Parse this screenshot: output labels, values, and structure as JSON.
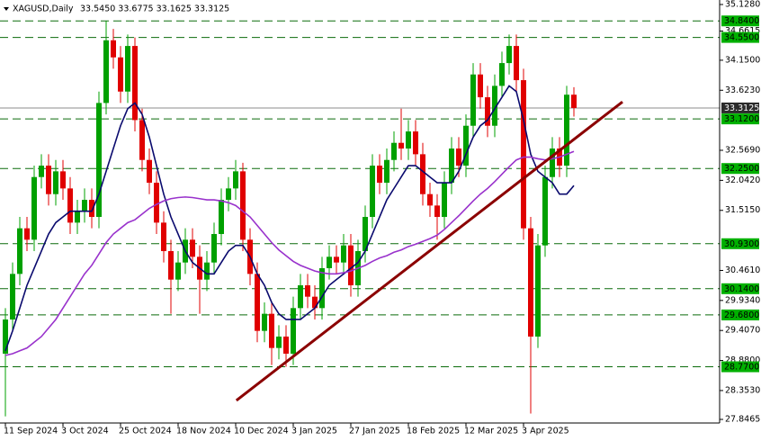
{
  "chart_data": {
    "type": "candlestick",
    "title": "XAGUSD,Daily",
    "ohlc_text": "33.5450 33.6775 33.1625 33.3125",
    "bull_color": "#00a000",
    "bear_color": "#e00000",
    "categories": [
      "11 Sep 2024",
      null,
      null,
      null,
      null,
      null,
      null,
      null,
      "3 Oct 2024",
      null,
      null,
      null,
      null,
      null,
      null,
      null,
      "25 Oct 2024",
      null,
      null,
      null,
      null,
      null,
      null,
      null,
      "18 Nov 2024",
      null,
      null,
      null,
      null,
      null,
      null,
      null,
      "10 Dec 2024",
      null,
      null,
      null,
      null,
      null,
      null,
      null,
      "3 Jan 2025",
      null,
      null,
      null,
      null,
      null,
      null,
      null,
      "27 Jan 2025",
      null,
      null,
      null,
      null,
      null,
      null,
      null,
      "18 Feb 2025",
      null,
      null,
      null,
      null,
      null,
      null,
      null,
      "12 Mar 2025",
      null,
      null,
      null,
      null,
      null,
      null,
      null,
      "3 Apr 2025",
      null,
      null,
      null,
      null,
      null,
      null,
      null
    ],
    "open": [
      29.0,
      29.6,
      30.4,
      31.2,
      31.0,
      32.1,
      32.3,
      31.8,
      32.2,
      31.9,
      31.3,
      31.5,
      31.7,
      31.4,
      33.4,
      34.5,
      34.2,
      33.6,
      34.4,
      33.1,
      32.4,
      32.0,
      31.3,
      30.8,
      30.3,
      30.6,
      31.0,
      30.7,
      30.3,
      30.6,
      31.1,
      31.7,
      31.9,
      32.2,
      31.0,
      30.4,
      29.4,
      29.7,
      29.1,
      29.3,
      29.0,
      29.8,
      30.2,
      30.0,
      29.8,
      30.5,
      30.7,
      30.6,
      30.9,
      30.2,
      30.8,
      31.4,
      32.3,
      32.0,
      32.4,
      32.7,
      32.6,
      32.9,
      32.5,
      31.8,
      31.6,
      31.4,
      32.0,
      32.6,
      32.3,
      33.0,
      33.9,
      33.5,
      33.0,
      33.7,
      34.1,
      34.4,
      33.8,
      31.2,
      29.3,
      30.9,
      32.1,
      32.6,
      32.3,
      33.545
    ],
    "high": [
      29.8,
      30.6,
      31.4,
      31.4,
      32.3,
      32.5,
      32.5,
      32.4,
      32.4,
      32.1,
      31.7,
      31.9,
      31.9,
      33.6,
      34.84,
      34.7,
      34.4,
      34.6,
      34.55,
      33.3,
      32.6,
      32.2,
      31.5,
      31.0,
      30.8,
      31.2,
      31.2,
      30.9,
      30.8,
      31.3,
      31.9,
      32.1,
      32.4,
      32.35,
      31.2,
      30.6,
      29.9,
      29.9,
      29.5,
      29.5,
      30.0,
      30.4,
      30.4,
      30.2,
      30.7,
      30.9,
      30.9,
      31.1,
      31.1,
      31.0,
      31.6,
      32.5,
      32.5,
      32.6,
      32.9,
      33.3,
      33.1,
      33.1,
      32.7,
      32.0,
      31.8,
      32.2,
      32.8,
      32.8,
      33.2,
      34.1,
      34.1,
      33.7,
      33.9,
      34.3,
      34.6,
      34.6,
      34.0,
      31.4,
      31.1,
      32.3,
      32.8,
      32.8,
      33.7,
      33.6775
    ],
    "low": [
      27.9,
      29.4,
      30.2,
      30.8,
      30.8,
      31.9,
      31.6,
      31.6,
      31.7,
      31.1,
      31.1,
      31.3,
      31.2,
      31.2,
      33.2,
      34.0,
      33.4,
      33.4,
      32.9,
      32.2,
      31.8,
      31.1,
      30.6,
      29.7,
      30.1,
      30.4,
      30.5,
      29.7,
      30.1,
      30.4,
      30.9,
      31.5,
      31.7,
      30.8,
      30.2,
      29.2,
      29.2,
      28.8,
      28.9,
      28.77,
      28.8,
      29.6,
      29.8,
      29.6,
      29.6,
      30.3,
      30.4,
      30.4,
      30.0,
      30.0,
      30.6,
      31.2,
      31.8,
      31.8,
      32.2,
      32.4,
      32.4,
      32.3,
      31.6,
      31.4,
      31.0,
      31.2,
      31.8,
      32.1,
      32.1,
      32.8,
      33.3,
      32.8,
      32.8,
      33.5,
      33.9,
      33.6,
      31.0,
      27.95,
      29.1,
      30.7,
      31.9,
      32.1,
      32.1,
      33.1625
    ],
    "close": [
      29.6,
      30.4,
      31.2,
      31.0,
      32.1,
      32.3,
      31.8,
      32.2,
      31.9,
      31.3,
      31.5,
      31.7,
      31.4,
      33.4,
      34.5,
      34.2,
      33.6,
      34.4,
      33.1,
      32.4,
      32.0,
      31.3,
      30.8,
      30.3,
      30.6,
      31.0,
      30.7,
      30.3,
      30.6,
      31.1,
      31.7,
      31.9,
      32.2,
      31.0,
      30.4,
      29.4,
      29.7,
      29.1,
      29.3,
      29.0,
      29.8,
      30.2,
      30.0,
      29.8,
      30.5,
      30.7,
      30.6,
      30.9,
      30.2,
      30.8,
      31.4,
      32.3,
      32.0,
      32.4,
      32.7,
      32.6,
      32.9,
      32.5,
      31.8,
      31.6,
      31.4,
      32.0,
      32.6,
      32.3,
      33.0,
      33.9,
      33.5,
      33.0,
      33.7,
      34.1,
      34.4,
      33.8,
      31.2,
      29.3,
      30.9,
      32.1,
      32.6,
      32.3,
      33.545,
      33.3125
    ],
    "series": [
      {
        "color": "#0a0a6e",
        "values": [
          29.05,
          29.4,
          29.8,
          30.2,
          30.5,
          30.8,
          31.1,
          31.3,
          31.4,
          31.5,
          31.5,
          31.5,
          31.5,
          31.8,
          32.2,
          32.6,
          33.0,
          33.3,
          33.4,
          33.2,
          32.8,
          32.3,
          31.8,
          31.4,
          31.1,
          30.8,
          30.6,
          30.5,
          30.4,
          30.4,
          30.6,
          30.8,
          30.9,
          30.9,
          30.7,
          30.4,
          30.2,
          29.9,
          29.7,
          29.6,
          29.6,
          29.6,
          29.7,
          29.8,
          30.0,
          30.2,
          30.3,
          30.4,
          30.5,
          30.6,
          30.8,
          31.1,
          31.4,
          31.7,
          31.9,
          32.1,
          32.3,
          32.3,
          32.2,
          32.1,
          32.0,
          32.0,
          32.0,
          32.2,
          32.5,
          32.8,
          33.0,
          33.1,
          33.3,
          33.5,
          33.7,
          33.6,
          33.1,
          32.5,
          32.2,
          32.1,
          32.0,
          31.8,
          31.8,
          31.95
        ]
      },
      {
        "color": "#9932cc",
        "values": [
          28.97,
          29.0,
          29.05,
          29.1,
          29.2,
          29.3,
          29.45,
          29.6,
          29.8,
          30.0,
          30.2,
          30.4,
          30.55,
          30.75,
          30.95,
          31.1,
          31.2,
          31.3,
          31.35,
          31.45,
          31.55,
          31.62,
          31.68,
          31.72,
          31.74,
          31.75,
          31.74,
          31.72,
          31.7,
          31.7,
          31.68,
          31.65,
          31.6,
          31.5,
          31.4,
          31.25,
          31.1,
          30.95,
          30.82,
          30.72,
          30.62,
          30.55,
          30.5,
          30.45,
          30.42,
          30.4,
          30.4,
          30.42,
          30.45,
          30.5,
          30.55,
          30.62,
          30.68,
          30.72,
          30.78,
          30.82,
          30.88,
          30.92,
          30.97,
          31.02,
          31.08,
          31.18,
          31.3,
          31.42,
          31.55,
          31.68,
          31.8,
          31.9,
          32.02,
          32.15,
          32.28,
          32.4,
          32.45,
          32.45,
          32.42,
          32.4,
          32.42,
          32.45,
          32.5,
          32.55
        ]
      }
    ],
    "trendline": {
      "color": "#8b0000",
      "x": [
        32.1,
        85.75
      ],
      "y": [
        28.18,
        33.42
      ]
    },
    "ylim": [
      27.8465,
      35.128
    ],
    "yticks": [
      {
        "value": 35.128,
        "label": "35.1280"
      },
      {
        "value": 34.6615,
        "label": "34.6615"
      },
      {
        "value": 34.15,
        "label": "34.1500"
      },
      {
        "value": 33.623,
        "label": "33.6230"
      },
      {
        "value": 32.569,
        "label": "32.5690"
      },
      {
        "value": 32.042,
        "label": "32.0420"
      },
      {
        "value": 31.515,
        "label": "31.5150"
      },
      {
        "value": 30.461,
        "label": "30.4610"
      },
      {
        "value": 29.934,
        "label": "29.9340"
      },
      {
        "value": 29.407,
        "label": "29.4070"
      },
      {
        "value": 28.88,
        "label": "28.8800"
      },
      {
        "value": 28.353,
        "label": "28.3530"
      },
      {
        "value": 27.8465,
        "label": "27.8465"
      }
    ],
    "levels": [
      {
        "value": 34.84,
        "label": "34.8400"
      },
      {
        "value": 34.55,
        "label": "34.5500"
      },
      {
        "value": 33.12,
        "label": "33.1200"
      },
      {
        "value": 32.25,
        "label": "32.2500"
      },
      {
        "value": 30.93,
        "label": "30.9300"
      },
      {
        "value": 30.14,
        "label": "30.1400"
      },
      {
        "value": 29.68,
        "label": "29.6800"
      },
      {
        "value": 28.77,
        "label": "28.7700"
      }
    ],
    "level_color": "#0b6b0b",
    "level_label_color": "#00b000",
    "current_price": {
      "value": 33.3125,
      "label": "33.3125"
    }
  }
}
